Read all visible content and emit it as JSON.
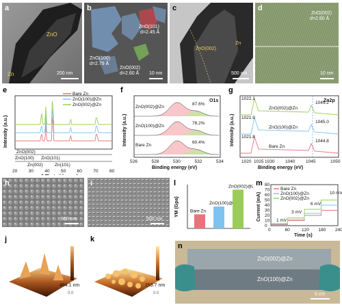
{
  "panels": {
    "a": {
      "label": "a",
      "zno": "ZnO",
      "zn": "Zn",
      "scale": "200 nm"
    },
    "b": {
      "label": "b",
      "r1": "ZnO(101)",
      "r1d": "d=2.45 Å",
      "r2": "ZnO(100)",
      "r2d": "d=2.79 Å",
      "r3": "ZnO(002)",
      "r3d": "d=2.60 Å",
      "scale": "10 nm"
    },
    "c": {
      "label": "c",
      "zno": "ZnO(002)",
      "zn": "Zn",
      "scale": "500 nm"
    },
    "d": {
      "label": "d",
      "r1": "ZnO(002)",
      "r1d": "d=2.60 Å",
      "scale": "10 nm"
    },
    "h": {
      "label": "h",
      "scale": "500 nm"
    },
    "i": {
      "label": "i",
      "scale": "500 nm"
    },
    "j": {
      "label": "j",
      "value": "484.1 nm"
    },
    "k": {
      "label": "k",
      "value": "153.7 nm"
    },
    "n": {
      "label": "n",
      "top": "ZnO(002)@Zn",
      "bottom": "ZnO(100)@Zn",
      "scale": "5 cm"
    }
  },
  "colors": {
    "bare": "#e8737d",
    "z100": "#7ec3f0",
    "z002": "#9bcc57"
  },
  "chart_data": [
    {
      "panel": "e",
      "type": "line",
      "xlabel": "2 Theta (degree)",
      "ylabel": "Intensity (a.u.)",
      "xlim": [
        20,
        80
      ],
      "xticks": [
        "20",
        "30",
        "40",
        "50",
        "60",
        "70",
        "80"
      ],
      "series": [
        {
          "name": "Bare Zn",
          "color": "#e8737d"
        },
        {
          "name": "ZnO(100)@Zn",
          "color": "#7ec3f0"
        },
        {
          "name": "ZnO(002)@Zn",
          "color": "#9bcc57"
        }
      ],
      "peaks": [
        36.3,
        39.0,
        43.2,
        54.3,
        70.1,
        70.7
      ],
      "ref_labels": [
        "ZnO(002)",
        "ZnO(100)",
        "ZnO(101)",
        "Zn(002)",
        "Zn(101)"
      ]
    },
    {
      "panel": "f",
      "type": "area",
      "xlabel": "Binding energy (eV)",
      "ylabel": "Intensity (a.u.)",
      "title": "O1s",
      "xlim": [
        526,
        534
      ],
      "xticks": [
        "526",
        "528",
        "530",
        "532",
        "534"
      ],
      "rows": [
        {
          "name": "ZnO(002)@Zn",
          "percent": "87.6%"
        },
        {
          "name": "ZnO(100)@Zn",
          "percent": "78.2%"
        },
        {
          "name": "Bare Zn",
          "percent": "60.4%"
        }
      ]
    },
    {
      "panel": "g",
      "type": "line",
      "xlabel": "Binding energy (eV)",
      "ylabel": "Intensity (a.u.)",
      "title": "Zn2p",
      "xticks": [
        "1020",
        "1025",
        "1030",
        "1040",
        "1045",
        "1050"
      ],
      "rows": [
        {
          "name": "ZnO(002)@Zn",
          "p1": "1022.1",
          "p2": "1045.2"
        },
        {
          "name": "ZnO(100)@Zn",
          "p1": "1021.9",
          "p2": "1045.0"
        },
        {
          "name": "Bare Zn",
          "p1": "1021.8",
          "p2": "1044.8"
        }
      ]
    },
    {
      "panel": "l",
      "type": "bar",
      "ylabel": "YM (Gpa)",
      "categories": [
        "Bare Zn",
        "ZnO(100)@Zn",
        "ZnO(002)@Zn"
      ],
      "values": [
        4.5,
        7.0,
        12.4
      ],
      "ylim": [
        0,
        14
      ]
    },
    {
      "panel": "m",
      "type": "line",
      "xlabel": "Time (s)",
      "ylabel": "Current (mA)",
      "xlim": [
        0,
        240
      ],
      "ylim": [
        0,
        80
      ],
      "xticks": [
        "0",
        "60",
        "120",
        "180",
        "240"
      ],
      "yticks": [
        "0",
        "10",
        "20",
        "30",
        "40",
        "50",
        "60",
        "70",
        "80"
      ],
      "legend": [
        "Bare Zn",
        "ZnO(100)@Zn",
        "ZnO(002)@Zn"
      ],
      "steps": [
        "1 mV",
        "3 mV",
        "6 mV",
        "10 mV"
      ]
    }
  ],
  "heatbar": {
    "j_low": "0.0",
    "k_low": "0.0"
  }
}
